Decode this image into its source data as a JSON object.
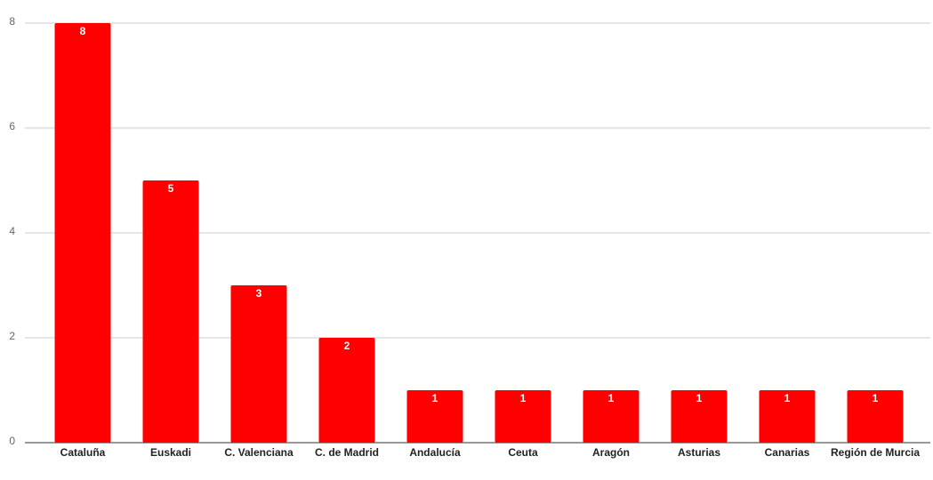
{
  "chart_data": {
    "type": "bar",
    "categories": [
      "Cataluña",
      "Euskadi",
      "C. Valenciana",
      "C. de Madrid",
      "Andalucía",
      "Ceuta",
      "Aragón",
      "Asturias",
      "Canarias",
      "Región de Murcia"
    ],
    "values": [
      8,
      5,
      3,
      2,
      1,
      1,
      1,
      1,
      1,
      1
    ],
    "color": "#ff0000",
    "ylim": [
      0,
      8
    ],
    "yticks": [
      0,
      2,
      4,
      6,
      8
    ],
    "grid": true
  }
}
